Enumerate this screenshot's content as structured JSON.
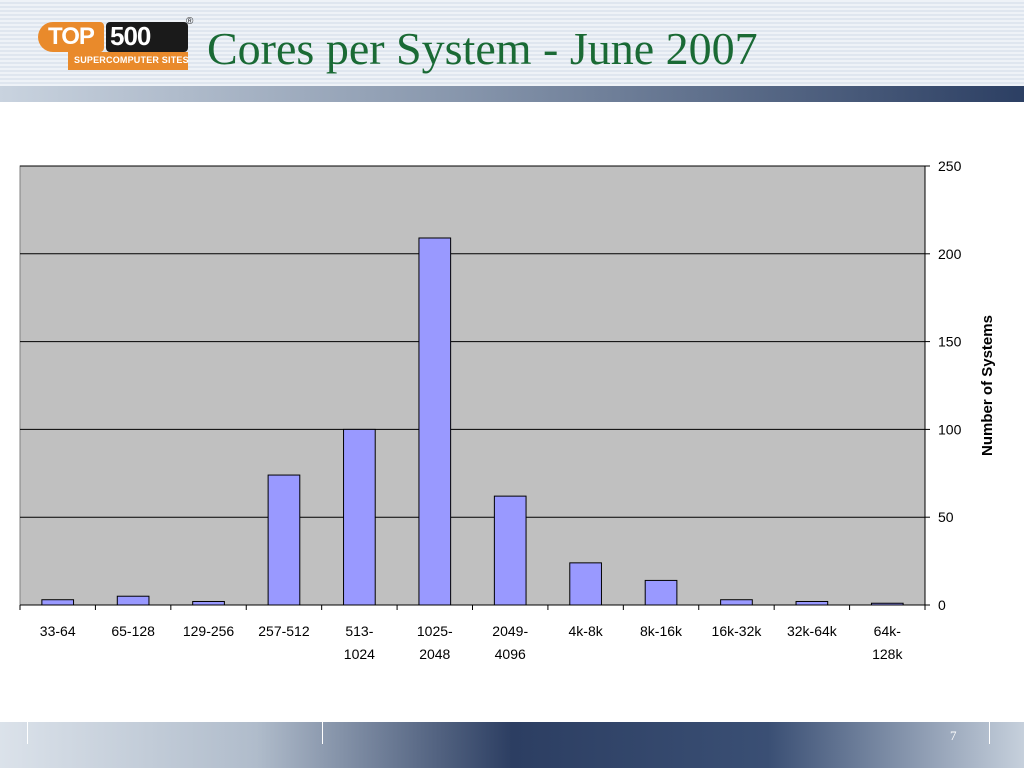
{
  "slide": {
    "title": "Cores per System - June 2007",
    "page_number": "7"
  },
  "logo": {
    "top_text": "TOP",
    "num_text": "500",
    "subtitle": "SUPERCOMPUTER SITES",
    "registered": "®"
  },
  "colors": {
    "title": "#1a6a35",
    "bar_fill": "#9999ff",
    "plot_bg": "#c0c0c0",
    "logo_orange": "#e98a2b"
  },
  "chart_data": {
    "type": "bar",
    "categories": [
      [
        "33-64"
      ],
      [
        "65-128"
      ],
      [
        "129-256"
      ],
      [
        "257-512"
      ],
      [
        "513-",
        "1024"
      ],
      [
        "1025-",
        "2048"
      ],
      [
        "2049-",
        "4096"
      ],
      [
        "4k-8k"
      ],
      [
        "8k-16k"
      ],
      [
        "16k-32k"
      ],
      [
        "32k-64k"
      ],
      [
        "64k-",
        "128k"
      ]
    ],
    "values": [
      3,
      5,
      2,
      74,
      100,
      209,
      62,
      24,
      14,
      3,
      2,
      1
    ],
    "ylabel": "Number of Systems",
    "ylim": [
      0,
      250
    ],
    "yticks": [
      0,
      50,
      100,
      150,
      200,
      250
    ],
    "yaxis_side": "right",
    "grid": true
  }
}
